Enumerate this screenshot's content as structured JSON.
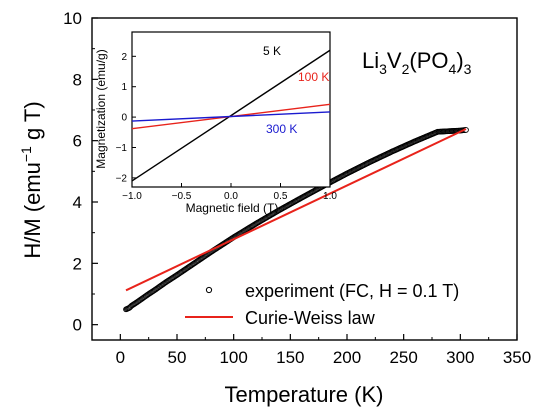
{
  "chart_data": [
    {
      "type": "scatter",
      "formula": {
        "base": "Li",
        "s1": "3",
        "m1": "V",
        "s2": "2",
        "m2": "(PO",
        "s3": "4",
        "m3": ")",
        "s4": "3"
      },
      "xlabel": "Temperature (K)",
      "ylabel": {
        "prefix": "H/M (emu",
        "sup": "−1",
        "suffix": " g T)"
      },
      "xlim": [
        -25,
        350
      ],
      "ylim": [
        -0.5,
        10
      ],
      "xticks": [
        "0",
        "50",
        "100",
        "150",
        "200",
        "250",
        "300",
        "350"
      ],
      "xtick_values": [
        0,
        50,
        100,
        150,
        200,
        250,
        300,
        350
      ],
      "yticks": [
        "0",
        "2",
        "4",
        "6",
        "8",
        "10"
      ],
      "ytick_values": [
        0,
        2,
        4,
        6,
        8,
        10
      ],
      "legend_position": "bottom-right",
      "series": [
        {
          "name": "experiment (FC, H = 0.1 T)",
          "kind": "points",
          "marker": "open-circle",
          "color": "#000000",
          "x": [
            5,
            8,
            10,
            15,
            20,
            25,
            30,
            40,
            50,
            60,
            70,
            80,
            90,
            100,
            120,
            140,
            160,
            180,
            200,
            220,
            240,
            260,
            280,
            300,
            305
          ],
          "y": [
            0.5,
            0.55,
            0.62,
            0.74,
            0.87,
            1.0,
            1.12,
            1.38,
            1.62,
            1.87,
            2.12,
            2.37,
            2.61,
            2.85,
            3.3,
            3.73,
            4.14,
            4.54,
            4.93,
            5.3,
            5.65,
            5.98,
            6.29,
            6.33,
            6.35
          ]
        },
        {
          "name": "Curie-Weiss law",
          "kind": "line",
          "color": "#e8231b",
          "x": [
            5,
            305
          ],
          "y": [
            1.12,
            6.38
          ]
        }
      ]
    },
    {
      "type": "line",
      "xlabel": "Magnetic field (T)",
      "ylabel": "Magnetization (emu/g)",
      "xlim": [
        -1,
        1
      ],
      "ylim": [
        -2.3,
        2.8
      ],
      "xticks": [
        "−1.0",
        "−0.5",
        "0.0",
        "0.5",
        "1.0"
      ],
      "xtick_values": [
        -1,
        -0.5,
        0,
        0.5,
        1
      ],
      "yticks": [
        "−2",
        "−1",
        "0",
        "1",
        "2"
      ],
      "ytick_values": [
        -2,
        -1,
        0,
        1,
        2
      ],
      "series": [
        {
          "name": "5 K",
          "color": "#000000",
          "x": [
            -1,
            1
          ],
          "y": [
            -2.1,
            2.2
          ]
        },
        {
          "name": "100 K",
          "color": "#e8231b",
          "x": [
            -1,
            1
          ],
          "y": [
            -0.38,
            0.42
          ]
        },
        {
          "name": "300 K",
          "color": "#1a1acf",
          "x": [
            -1,
            1
          ],
          "y": [
            -0.13,
            0.17
          ]
        }
      ]
    }
  ]
}
